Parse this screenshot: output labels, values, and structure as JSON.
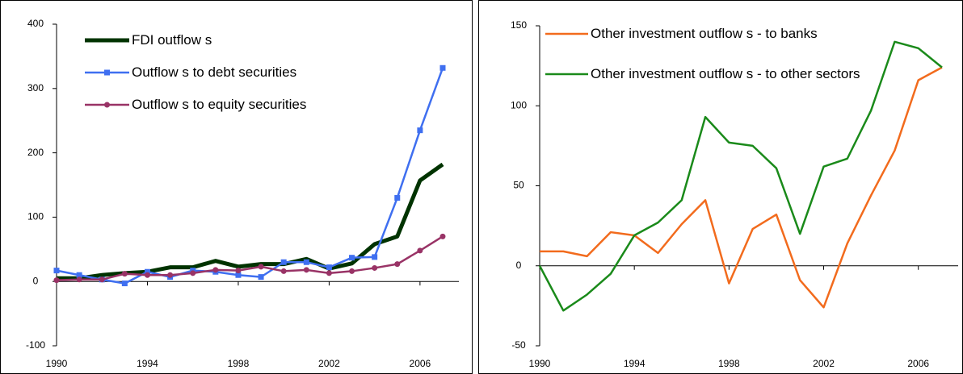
{
  "chart_data": [
    {
      "type": "line",
      "x": [
        1990,
        1991,
        1992,
        1993,
        1994,
        1995,
        1996,
        1997,
        1998,
        1999,
        2000,
        2001,
        2002,
        2003,
        2004,
        2005,
        2006,
        2007
      ],
      "xlim": [
        1990,
        2007
      ],
      "xticks": [
        1990,
        1994,
        1998,
        2002,
        2006
      ],
      "ylim": [
        -100,
        400
      ],
      "yticks": [
        -100,
        0,
        100,
        200,
        300,
        400
      ],
      "legend": "upper left",
      "series": [
        {
          "name": "FDI outflow s",
          "color": "#003300",
          "width": 5,
          "marker": "none",
          "values": [
            5,
            5,
            10,
            13,
            15,
            22,
            22,
            32,
            23,
            27,
            27,
            35,
            20,
            28,
            58,
            70,
            157,
            182
          ]
        },
        {
          "name": "Outflow s to debt securities",
          "color": "#3f6ff0",
          "width": 2.5,
          "marker": "square",
          "values": [
            17,
            10,
            3,
            -3,
            15,
            7,
            17,
            15,
            10,
            7,
            30,
            30,
            22,
            37,
            38,
            130,
            235,
            332
          ]
        },
        {
          "name": "Outflow s to equity securities",
          "color": "#993366",
          "width": 2.5,
          "marker": "circle",
          "values": [
            2,
            3,
            3,
            12,
            10,
            10,
            13,
            18,
            17,
            23,
            16,
            18,
            13,
            16,
            21,
            27,
            48,
            70
          ]
        }
      ]
    },
    {
      "type": "line",
      "x": [
        1990,
        1991,
        1992,
        1993,
        1994,
        1995,
        1996,
        1997,
        1998,
        1999,
        2000,
        2001,
        2002,
        2003,
        2004,
        2005,
        2006,
        2007
      ],
      "xlim": [
        1990,
        2007
      ],
      "xticks": [
        1990,
        1994,
        1998,
        2002,
        2006
      ],
      "ylim": [
        -50,
        150
      ],
      "yticks": [
        -50,
        0,
        50,
        100,
        150
      ],
      "legend": "upper left",
      "series": [
        {
          "name": "Other investment outflow s - to banks",
          "color": "#f26b1d",
          "width": 2.5,
          "marker": "none",
          "values": [
            9,
            9,
            6,
            21,
            19,
            8,
            26,
            41,
            -11,
            23,
            32,
            -9,
            -26,
            14,
            44,
            72,
            116,
            124
          ]
        },
        {
          "name": "Other investment outflow s - to other sectors",
          "color": "#1a8a1a",
          "width": 2.5,
          "marker": "none",
          "values": [
            0,
            -28,
            -18,
            -5,
            19,
            27,
            41,
            93,
            77,
            75,
            61,
            20,
            62,
            67,
            97,
            140,
            136,
            124
          ]
        }
      ]
    }
  ]
}
